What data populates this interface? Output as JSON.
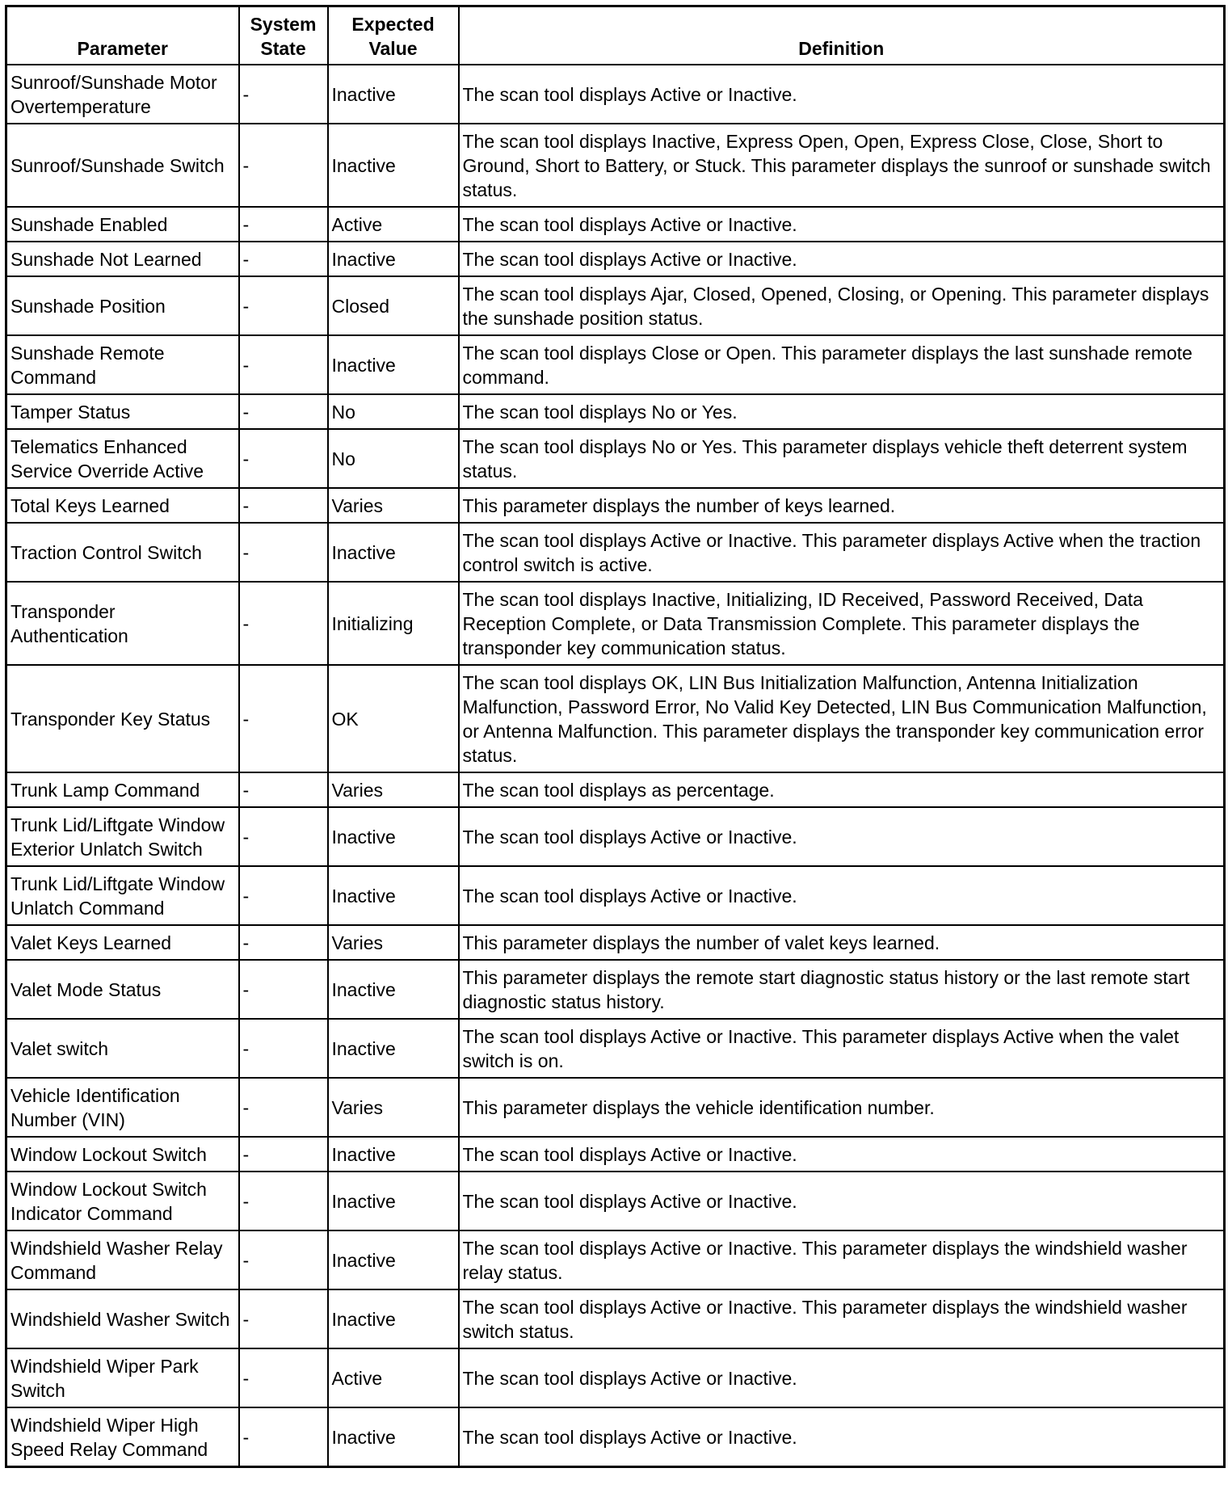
{
  "headers": [
    "Parameter",
    "System State",
    "Expected Value",
    "Definition"
  ],
  "rows": [
    [
      "Sunroof/Sunshade Motor Overtemperature",
      "-",
      "Inactive",
      "The scan tool displays Active or Inactive."
    ],
    [
      "Sunroof/Sunshade Switch",
      "-",
      "Inactive",
      "The scan tool displays Inactive, Express Open, Open, Express Close, Close, Short to Ground, Short to Battery, or Stuck. This parameter displays the sunroof or sunshade switch status."
    ],
    [
      "Sunshade Enabled",
      "-",
      "Active",
      "The scan tool displays Active or Inactive."
    ],
    [
      "Sunshade Not Learned",
      "-",
      "Inactive",
      "The scan tool displays Active or Inactive."
    ],
    [
      "Sunshade Position",
      "-",
      "Closed",
      "The scan tool displays Ajar, Closed, Opened, Closing, or Opening. This parameter displays the sunshade position status."
    ],
    [
      "Sunshade Remote Command",
      "-",
      "Inactive",
      "The scan tool displays Close or Open. This parameter displays the last sunshade remote command."
    ],
    [
      "Tamper Status",
      "-",
      "No",
      "The scan tool displays No or Yes."
    ],
    [
      "Telematics Enhanced Service Override Active",
      "-",
      "No",
      "The scan tool displays No or Yes. This parameter displays vehicle theft deterrent system status."
    ],
    [
      "Total Keys Learned",
      "-",
      "Varies",
      "This parameter displays the number of keys learned."
    ],
    [
      "Traction Control Switch",
      "-",
      "Inactive",
      "The scan tool displays Active or Inactive. This parameter displays Active when the traction control switch is active."
    ],
    [
      "Transponder Authentication",
      "-",
      "Initializing",
      "The scan tool displays Inactive, Initializing, ID Received, Password Received, Data Reception Complete, or Data Transmission Complete. This parameter displays the transponder key communication status."
    ],
    [
      "Transponder Key Status",
      "-",
      "OK",
      "The scan tool displays OK, LIN Bus Initialization Malfunction, Antenna Initialization Malfunction, Password Error, No Valid Key Detected, LIN Bus Communication Malfunction, or Antenna Malfunction. This parameter displays the transponder key communication error status."
    ],
    [
      "Trunk Lamp Command",
      "-",
      "Varies",
      "The scan tool displays as percentage."
    ],
    [
      "Trunk Lid/Liftgate Window Exterior Unlatch Switch",
      "-",
      "Inactive",
      "The scan tool displays Active or Inactive."
    ],
    [
      "Trunk Lid/Liftgate Window Unlatch Command",
      "-",
      "Inactive",
      "The scan tool displays Active or Inactive."
    ],
    [
      "Valet Keys Learned",
      "-",
      "Varies",
      "This parameter displays the number of valet keys learned."
    ],
    [
      "Valet Mode Status",
      "-",
      "Inactive",
      "This parameter displays the remote start diagnostic status history or the last remote start diagnostic status history."
    ],
    [
      "Valet switch",
      "-",
      "Inactive",
      "The scan tool displays Active or Inactive. This parameter displays Active when the valet switch is on."
    ],
    [
      "Vehicle Identification Number (VIN)",
      "-",
      "Varies",
      "This parameter displays the vehicle identification number."
    ],
    [
      "Window Lockout Switch",
      "-",
      "Inactive",
      "The scan tool displays Active or Inactive."
    ],
    [
      "Window Lockout Switch Indicator Command",
      "-",
      "Inactive",
      "The scan tool displays Active or Inactive."
    ],
    [
      "Windshield Washer Relay Command",
      "-",
      "Inactive",
      "The scan tool displays Active or Inactive. This parameter displays the windshield washer relay status."
    ],
    [
      "Windshield Washer Switch",
      "-",
      "Inactive",
      "The scan tool displays Active or Inactive. This parameter displays the windshield washer switch status."
    ],
    [
      "Windshield Wiper Park Switch",
      "-",
      "Active",
      "The scan tool displays Active or Inactive."
    ],
    [
      "Windshield Wiper High Speed Relay Command",
      "-",
      "Inactive",
      "The scan tool displays Active or Inactive."
    ]
  ]
}
